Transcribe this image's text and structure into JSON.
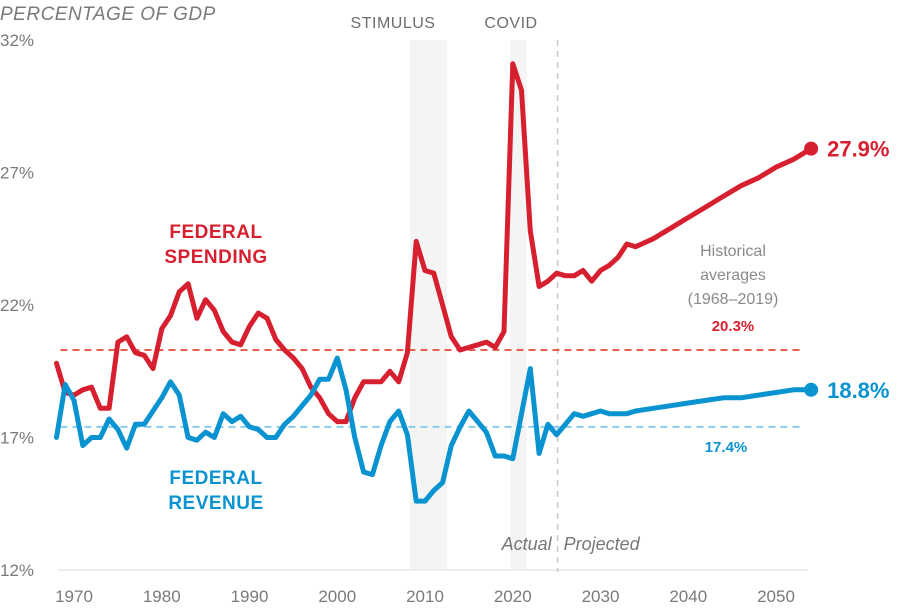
{
  "chart_data": {
    "type": "line",
    "title": "",
    "ylabel": "PERCENTAGE OF GDP",
    "xlabel": "",
    "ylim": [
      12,
      32
    ],
    "xlim": [
      1968,
      2054
    ],
    "yticks": [
      12,
      17,
      22,
      27,
      32
    ],
    "ytick_labels": [
      "12%",
      "17%",
      "22%",
      "27%",
      "32%"
    ],
    "xticks": [
      1970,
      1980,
      1990,
      2000,
      2010,
      2020,
      2030,
      2040,
      2050
    ],
    "xtick_labels": [
      "1970",
      "1980",
      "1990",
      "2000",
      "2010",
      "2020",
      "2030",
      "2040",
      "2050"
    ],
    "grid": false,
    "bands": [
      {
        "label": "STIMULUS",
        "start": 2008.3,
        "end": 2012.5
      },
      {
        "label": "COVID",
        "start": 2019.7,
        "end": 2021.6
      }
    ],
    "divider": {
      "year": 2025,
      "left_label": "Actual",
      "right_label": "Projected"
    },
    "series": [
      {
        "name": "FEDERAL SPENDING",
        "label_lines": [
          "FEDERAL",
          "SPENDING"
        ],
        "color": "#d7202f",
        "average": 20.3,
        "average_label": "20.3%",
        "end_value_label": "27.9%",
        "x": [
          1968,
          1969,
          1970,
          1971,
          1972,
          1973,
          1974,
          1975,
          1976,
          1977,
          1978,
          1979,
          1980,
          1981,
          1982,
          1983,
          1984,
          1985,
          1986,
          1987,
          1988,
          1989,
          1990,
          1991,
          1992,
          1993,
          1994,
          1995,
          1996,
          1997,
          1998,
          1999,
          2000,
          2001,
          2002,
          2003,
          2004,
          2005,
          2006,
          2007,
          2008,
          2009,
          2010,
          2011,
          2012,
          2013,
          2014,
          2015,
          2016,
          2017,
          2018,
          2019,
          2020,
          2021,
          2022,
          2023,
          2024,
          2025,
          2026,
          2027,
          2028,
          2029,
          2030,
          2031,
          2032,
          2033,
          2034,
          2036,
          2038,
          2040,
          2042,
          2044,
          2046,
          2048,
          2050,
          2052,
          2054
        ],
        "values": [
          19.8,
          18.7,
          18.6,
          18.8,
          18.9,
          18.1,
          18.1,
          20.6,
          20.8,
          20.2,
          20.1,
          19.6,
          21.1,
          21.6,
          22.5,
          22.8,
          21.5,
          22.2,
          21.8,
          21.0,
          20.6,
          20.5,
          21.2,
          21.7,
          21.5,
          20.7,
          20.3,
          20.0,
          19.6,
          18.9,
          18.5,
          17.9,
          17.6,
          17.6,
          18.5,
          19.1,
          19.1,
          19.1,
          19.5,
          19.1,
          20.2,
          24.4,
          23.3,
          23.2,
          22.0,
          20.8,
          20.3,
          20.4,
          20.5,
          20.6,
          20.4,
          21.0,
          31.1,
          30.1,
          24.8,
          22.7,
          22.9,
          23.2,
          23.1,
          23.1,
          23.3,
          22.9,
          23.3,
          23.5,
          23.8,
          24.3,
          24.2,
          24.5,
          24.9,
          25.3,
          25.7,
          26.1,
          26.5,
          26.8,
          27.2,
          27.5,
          27.9
        ]
      },
      {
        "name": "FEDERAL REVENUE",
        "label_lines": [
          "FEDERAL",
          "REVENUE"
        ],
        "color": "#0a93d1",
        "average": 17.4,
        "average_label": "17.4%",
        "end_value_label": "18.8%",
        "x": [
          1968,
          1969,
          1970,
          1971,
          1972,
          1973,
          1974,
          1975,
          1976,
          1977,
          1978,
          1979,
          1980,
          1981,
          1982,
          1983,
          1984,
          1985,
          1986,
          1987,
          1988,
          1989,
          1990,
          1991,
          1992,
          1993,
          1994,
          1995,
          1996,
          1997,
          1998,
          1999,
          2000,
          2001,
          2002,
          2003,
          2004,
          2005,
          2006,
          2007,
          2008,
          2009,
          2010,
          2011,
          2012,
          2013,
          2014,
          2015,
          2016,
          2017,
          2018,
          2019,
          2020,
          2021,
          2022,
          2023,
          2024,
          2025,
          2026,
          2027,
          2028,
          2029,
          2030,
          2031,
          2032,
          2033,
          2034,
          2036,
          2038,
          2040,
          2042,
          2044,
          2046,
          2048,
          2050,
          2052,
          2054
        ],
        "values": [
          17.0,
          19.0,
          18.4,
          16.7,
          17.0,
          17.0,
          17.7,
          17.3,
          16.6,
          17.5,
          17.5,
          18.0,
          18.5,
          19.1,
          18.6,
          17.0,
          16.9,
          17.2,
          17.0,
          17.9,
          17.6,
          17.8,
          17.4,
          17.3,
          17.0,
          17.0,
          17.5,
          17.8,
          18.2,
          18.6,
          19.2,
          19.2,
          20.0,
          18.8,
          17.0,
          15.7,
          15.6,
          16.7,
          17.6,
          18.0,
          17.1,
          14.6,
          14.6,
          15.0,
          15.3,
          16.7,
          17.4,
          18.0,
          17.6,
          17.2,
          16.3,
          16.3,
          16.2,
          17.9,
          19.6,
          16.4,
          17.5,
          17.1,
          17.5,
          17.9,
          17.8,
          17.9,
          18.0,
          17.9,
          17.9,
          17.9,
          18.0,
          18.1,
          18.2,
          18.3,
          18.4,
          18.5,
          18.5,
          18.6,
          18.7,
          18.8,
          18.8
        ]
      }
    ],
    "annotation": {
      "lines": [
        "Historical",
        "averages",
        "(1968–2019)"
      ]
    }
  }
}
